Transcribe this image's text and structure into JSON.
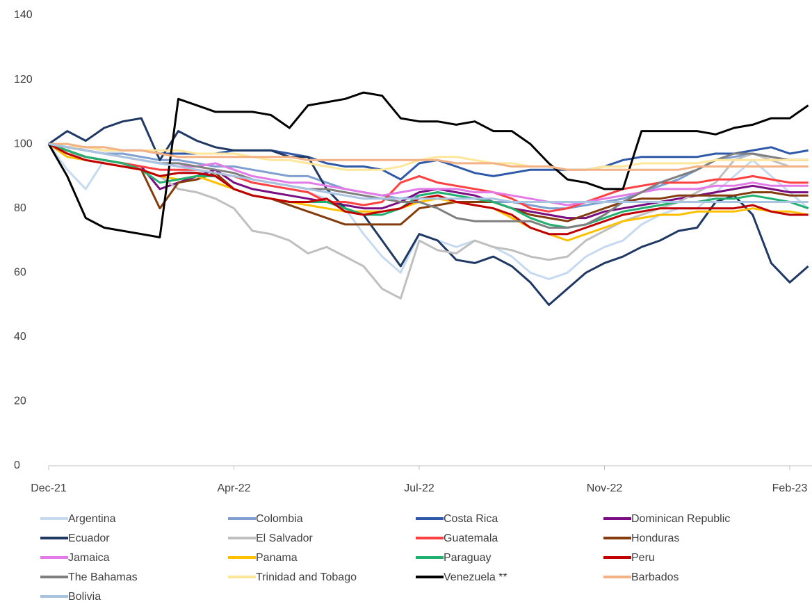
{
  "chart_data": {
    "type": "line",
    "categories": [
      "Dec-21",
      null,
      null,
      null,
      null,
      null,
      null,
      null,
      null,
      null,
      "Apr-22",
      null,
      null,
      null,
      null,
      null,
      null,
      null,
      null,
      null,
      "Jul-22",
      null,
      null,
      null,
      null,
      null,
      null,
      null,
      null,
      null,
      "Nov-22",
      null,
      null,
      null,
      null,
      null,
      null,
      null,
      null,
      null,
      "Feb-23",
      null
    ],
    "ylim": [
      0,
      140
    ],
    "yticks": [
      0,
      20,
      40,
      60,
      80,
      100,
      120,
      140
    ],
    "series": [
      {
        "name": "Argentina",
        "color": "#c5daf0",
        "values": [
          100,
          92,
          86,
          95,
          94,
          93,
          92,
          92,
          91,
          91,
          90,
          88,
          87,
          86,
          85,
          83,
          80,
          72,
          65,
          60,
          72,
          70,
          68,
          70,
          68,
          65,
          60,
          58,
          60,
          65,
          68,
          70,
          75,
          78,
          80,
          80,
          85,
          90,
          95,
          90,
          85,
          80
        ]
      },
      {
        "name": "Colombia",
        "color": "#7f9fd0",
        "values": [
          100,
          99,
          98,
          97,
          97,
          96,
          95,
          95,
          94,
          93,
          93,
          92,
          91,
          90,
          90,
          88,
          86,
          85,
          84,
          83,
          84,
          85,
          84,
          83,
          82,
          82,
          81,
          80,
          80,
          81,
          82,
          83,
          85,
          87,
          89,
          92,
          95,
          96,
          97,
          96,
          95,
          95
        ]
      },
      {
        "name": "Costa Rica",
        "color": "#2e59a8",
        "values": [
          100,
          99,
          99,
          98,
          98,
          98,
          97,
          97,
          97,
          97,
          98,
          98,
          98,
          97,
          96,
          94,
          93,
          93,
          92,
          89,
          94,
          95,
          93,
          91,
          90,
          91,
          92,
          92,
          92,
          92,
          93,
          95,
          96,
          96,
          96,
          96,
          97,
          97,
          98,
          99,
          97,
          98
        ]
      },
      {
        "name": "Dominican Republic",
        "color": "#7b0d82",
        "values": [
          100,
          98,
          96,
          95,
          94,
          93,
          86,
          88,
          90,
          92,
          88,
          86,
          85,
          84,
          83,
          82,
          81,
          80,
          80,
          82,
          85,
          86,
          85,
          84,
          82,
          80,
          79,
          78,
          77,
          77,
          79,
          80,
          81,
          82,
          83,
          84,
          85,
          86,
          87,
          86,
          85,
          85
        ]
      },
      {
        "name": "Ecuador",
        "color": "#1f3864",
        "values": [
          100,
          104,
          101,
          105,
          107,
          108,
          95,
          104,
          101,
          99,
          98,
          98,
          98,
          96,
          96,
          86,
          80,
          78,
          70,
          62,
          72,
          70,
          64,
          63,
          65,
          62,
          57,
          50,
          55,
          60,
          63,
          65,
          68,
          70,
          73,
          74,
          82,
          84,
          78,
          63,
          57,
          62
        ]
      },
      {
        "name": "El Salvador",
        "color": "#bfbfbf",
        "values": [
          100,
          97,
          96,
          95,
          94,
          92,
          90,
          86,
          85,
          83,
          80,
          73,
          72,
          70,
          66,
          68,
          65,
          62,
          55,
          52,
          70,
          67,
          66,
          70,
          68,
          67,
          65,
          64,
          65,
          70,
          73,
          76,
          78,
          80,
          82,
          85,
          88,
          95,
          97,
          95,
          93,
          93
        ]
      },
      {
        "name": "Guatemala",
        "color": "#ff4040",
        "values": [
          100,
          98,
          96,
          95,
          94,
          93,
          92,
          92,
          92,
          91,
          90,
          88,
          87,
          86,
          85,
          82,
          82,
          81,
          82,
          88,
          90,
          88,
          87,
          86,
          85,
          83,
          80,
          79,
          80,
          82,
          84,
          86,
          87,
          88,
          88,
          88,
          89,
          89,
          90,
          89,
          88,
          88
        ]
      },
      {
        "name": "Honduras",
        "color": "#843c0c",
        "values": [
          100,
          98,
          96,
          95,
          94,
          92,
          80,
          88,
          89,
          91,
          86,
          84,
          83,
          81,
          79,
          77,
          75,
          75,
          75,
          75,
          80,
          81,
          82,
          82,
          82,
          80,
          78,
          77,
          76,
          78,
          80,
          82,
          83,
          83,
          84,
          84,
          84,
          84,
          85,
          85,
          84,
          84
        ]
      },
      {
        "name": "Jamaica",
        "color": "#e27be8",
        "values": [
          100,
          99,
          98,
          97,
          96,
          95,
          94,
          93,
          93,
          94,
          92,
          90,
          89,
          88,
          88,
          87,
          86,
          85,
          84,
          85,
          86,
          86,
          86,
          85,
          85,
          84,
          83,
          82,
          81,
          82,
          83,
          84,
          85,
          86,
          86,
          86,
          87,
          87,
          88,
          87,
          87,
          87
        ]
      },
      {
        "name": "Panama",
        "color": "#ffc000",
        "values": [
          100,
          96,
          95,
          94,
          93,
          92,
          90,
          89,
          90,
          88,
          86,
          84,
          83,
          82,
          81,
          80,
          79,
          79,
          79,
          80,
          82,
          83,
          82,
          81,
          80,
          77,
          74,
          72,
          70,
          72,
          74,
          76,
          77,
          78,
          78,
          79,
          79,
          79,
          80,
          79,
          79,
          78
        ]
      },
      {
        "name": "Paraguay",
        "color": "#20b070",
        "values": [
          100,
          98,
          96,
          95,
          94,
          92,
          88,
          89,
          90,
          90,
          86,
          84,
          83,
          82,
          82,
          82,
          80,
          78,
          78,
          80,
          84,
          85,
          84,
          83,
          82,
          80,
          77,
          75,
          74,
          75,
          77,
          79,
          80,
          81,
          82,
          82,
          83,
          83,
          84,
          83,
          82,
          80
        ]
      },
      {
        "name": "Peru",
        "color": "#c00000",
        "values": [
          100,
          97,
          95,
          94,
          93,
          92,
          90,
          91,
          91,
          90,
          86,
          84,
          83,
          82,
          82,
          83,
          79,
          78,
          79,
          80,
          83,
          84,
          82,
          81,
          80,
          78,
          74,
          72,
          72,
          74,
          76,
          78,
          79,
          80,
          80,
          80,
          80,
          80,
          81,
          79,
          78,
          78
        ]
      },
      {
        "name": "The Bahamas",
        "color": "#7f7f7f",
        "values": [
          100,
          99,
          98,
          97,
          96,
          95,
          94,
          94,
          93,
          92,
          91,
          89,
          88,
          87,
          86,
          86,
          85,
          84,
          83,
          82,
          82,
          80,
          77,
          76,
          76,
          76,
          76,
          74,
          74,
          75,
          78,
          82,
          85,
          88,
          90,
          92,
          95,
          97,
          97,
          96,
          95,
          95
        ]
      },
      {
        "name": "Trinidad and Tobago",
        "color": "#ffe699",
        "values": [
          100,
          99,
          99,
          98,
          98,
          98,
          98,
          98,
          97,
          97,
          97,
          96,
          95,
          95,
          94,
          93,
          92,
          92,
          92,
          93,
          95,
          96,
          96,
          95,
          94,
          94,
          93,
          93,
          92,
          92,
          93,
          93,
          94,
          94,
          94,
          94,
          95,
          95,
          95,
          95,
          95,
          95
        ]
      },
      {
        "name": "Venezuela **",
        "color": "#000000",
        "values": [
          100,
          90,
          77,
          74,
          73,
          72,
          71,
          114,
          112,
          110,
          110,
          110,
          109,
          105,
          112,
          113,
          114,
          116,
          115,
          108,
          107,
          107,
          106,
          107,
          104,
          104,
          100,
          94,
          89,
          88,
          86,
          86,
          104,
          104,
          104,
          104,
          103,
          105,
          106,
          108,
          108,
          112
        ]
      },
      {
        "name": "Barbados",
        "color": "#f4b183",
        "values": [
          100,
          100,
          99,
          99,
          98,
          98,
          97,
          96,
          96,
          96,
          96,
          96,
          96,
          96,
          95,
          95,
          95,
          95,
          95,
          95,
          95,
          95,
          94,
          94,
          94,
          93,
          93,
          93,
          92,
          92,
          92,
          92,
          92,
          92,
          92,
          93,
          93,
          93,
          93,
          93,
          93,
          93
        ]
      },
      {
        "name": "Bolivia",
        "color": "#a9c4e0",
        "values": [
          100,
          99,
          98,
          97,
          96,
          95,
          94,
          93,
          92,
          91,
          90,
          89,
          88,
          87,
          86,
          85,
          84,
          83,
          83,
          83,
          83,
          83,
          83,
          83,
          83,
          82,
          82,
          82,
          82,
          82,
          82,
          82,
          82,
          82,
          82,
          82,
          82,
          82,
          82,
          82,
          82,
          82
        ]
      }
    ]
  }
}
